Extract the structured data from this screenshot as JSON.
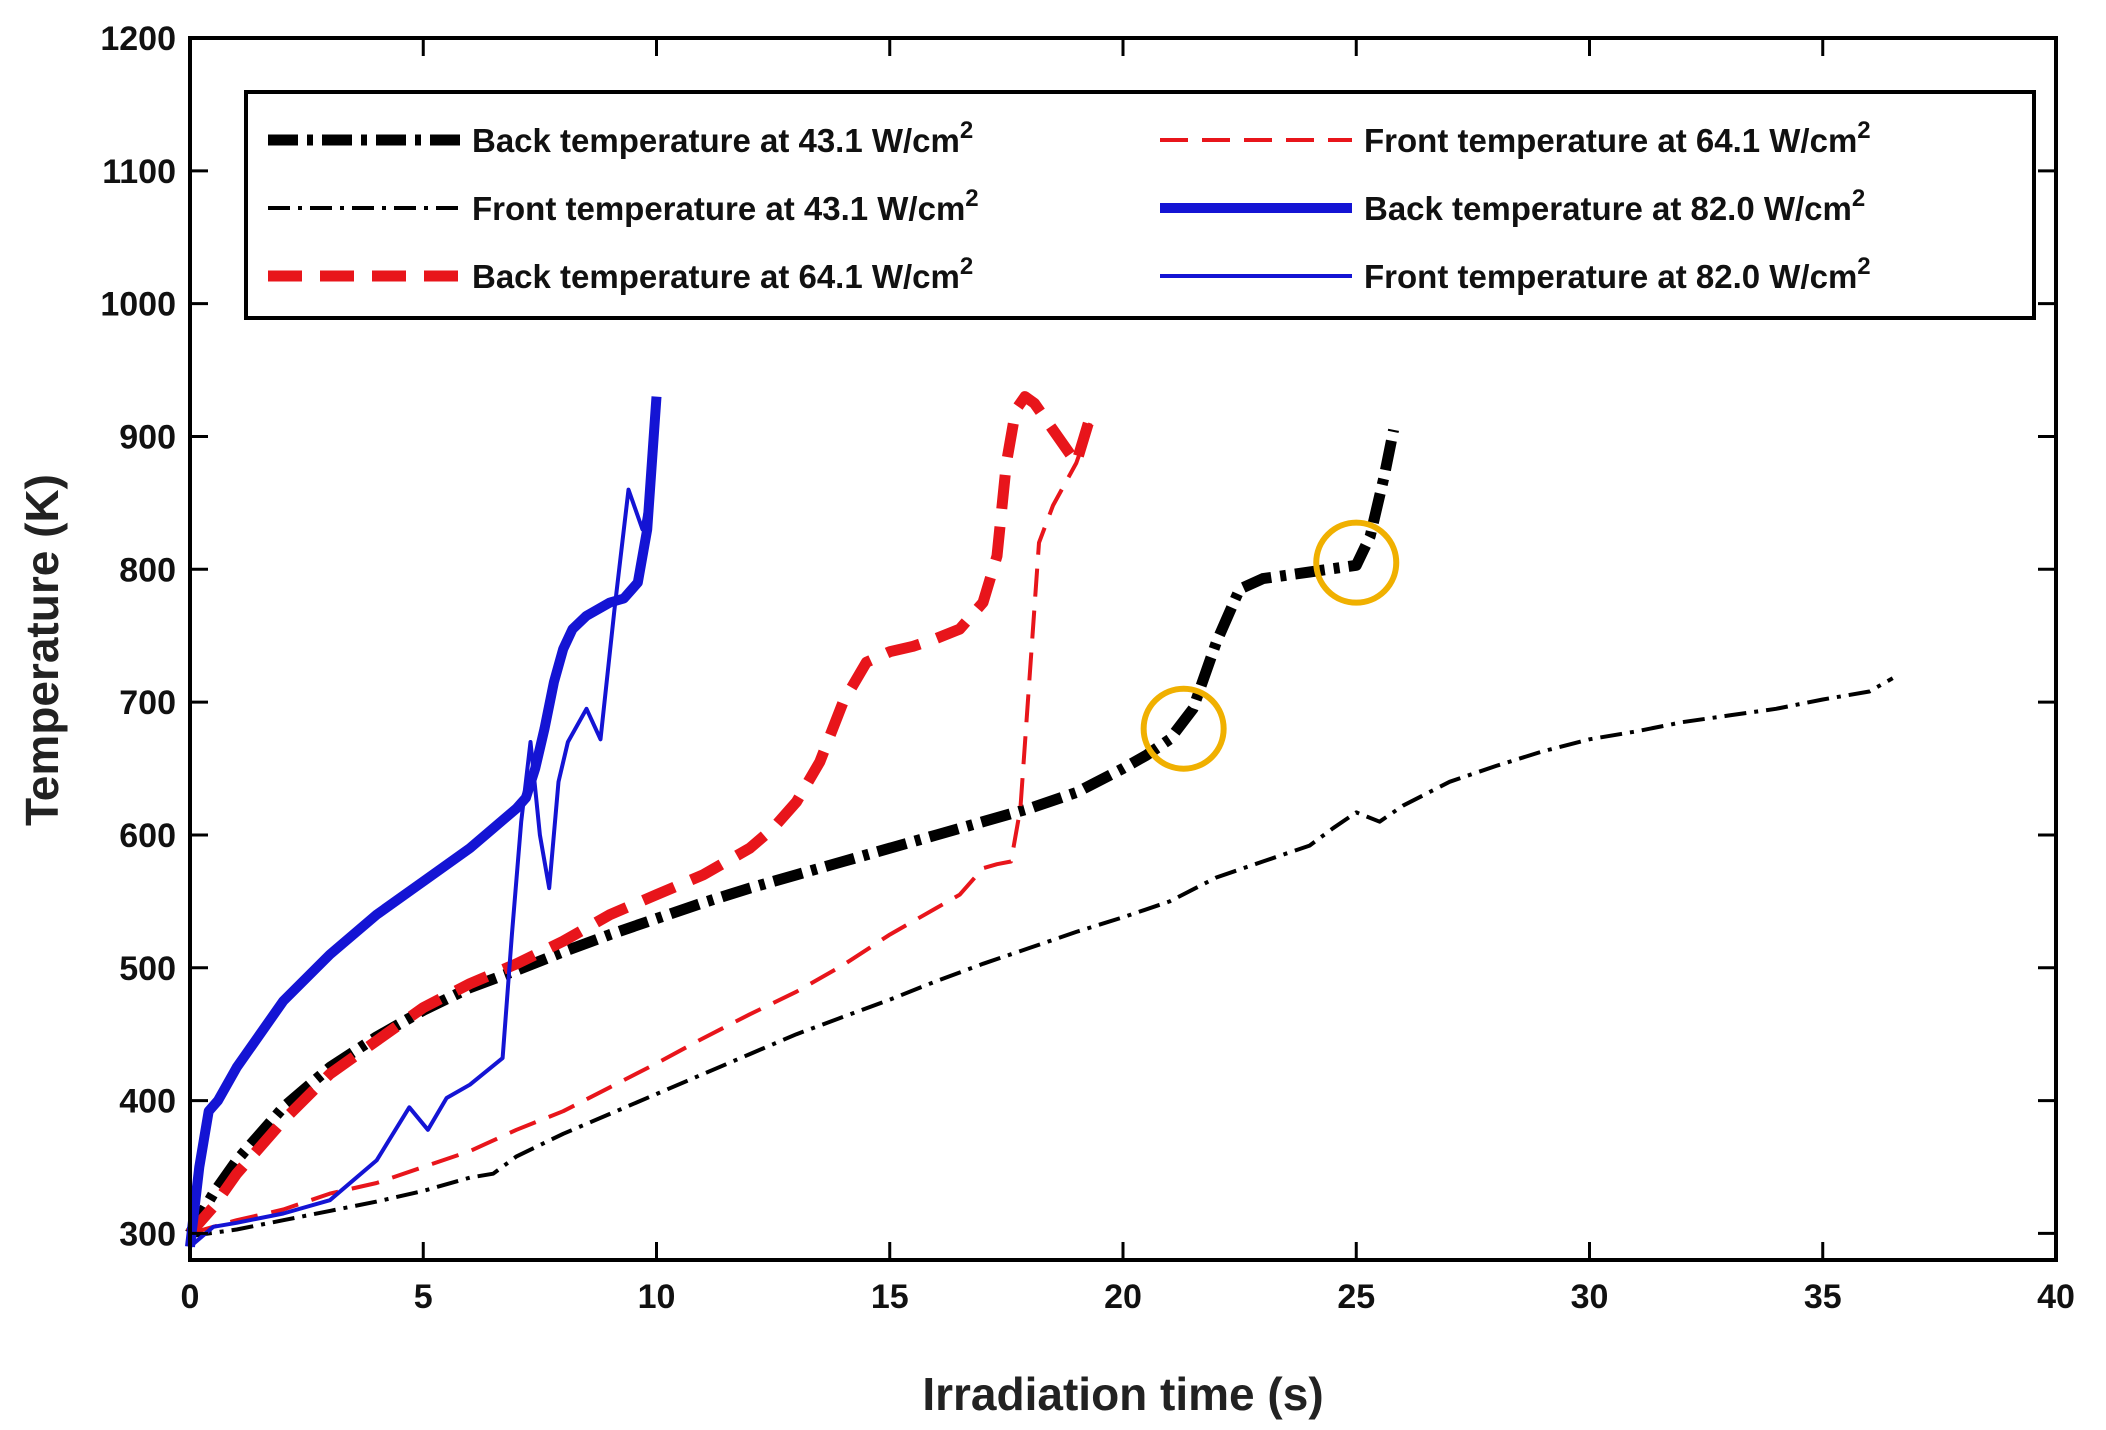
{
  "chart_data": {
    "type": "line",
    "title": "",
    "xlabel": "Irradiation time (s)",
    "ylabel": "Temperature (K)",
    "xlim": [
      0,
      40
    ],
    "ylim": [
      280,
      1200
    ],
    "xticks": [
      "0",
      "5",
      "10",
      "15",
      "20",
      "25",
      "30",
      "35",
      "40"
    ],
    "yticks": [
      "300",
      "400",
      "500",
      "600",
      "700",
      "800",
      "900",
      "1000",
      "1100",
      "1200"
    ],
    "grid": false,
    "legend_position": "top",
    "units_superscript": "2",
    "series": [
      {
        "name": "Back temperature at 43.1 W/cm",
        "color": "#000000",
        "style": "dashdot-thick",
        "x": [
          0,
          0.5,
          1,
          2,
          3,
          4,
          5,
          6,
          7,
          8,
          9,
          10,
          11,
          12,
          13,
          14,
          15,
          16,
          17,
          18,
          19,
          20,
          20.5,
          21,
          21.5,
          22,
          22.5,
          23,
          24,
          25,
          25.3,
          25.6,
          25.8
        ],
        "y": [
          300,
          330,
          355,
          395,
          425,
          448,
          468,
          485,
          498,
          512,
          525,
          537,
          549,
          560,
          570,
          580,
          590,
          600,
          610,
          620,
          632,
          650,
          660,
          672,
          695,
          745,
          785,
          793,
          798,
          803,
          825,
          870,
          905
        ]
      },
      {
        "name": "Front temperature at 43.1 W/cm",
        "color": "#000000",
        "style": "dashdot-thin",
        "x": [
          0,
          1,
          2,
          3,
          4,
          5,
          6,
          6.5,
          7,
          8,
          9,
          10,
          11,
          12,
          13,
          14,
          15,
          16,
          17,
          18,
          19,
          20,
          21,
          22,
          23,
          24,
          24.5,
          25,
          25.5,
          26,
          27,
          28,
          29,
          30,
          31,
          32,
          33,
          34,
          35,
          36,
          36.5
        ],
        "y": [
          298,
          303,
          310,
          317,
          324,
          332,
          342,
          345,
          358,
          375,
          390,
          405,
          420,
          435,
          450,
          463,
          476,
          490,
          503,
          515,
          527,
          538,
          550,
          568,
          580,
          592,
          605,
          617,
          610,
          622,
          640,
          652,
          663,
          672,
          678,
          685,
          690,
          695,
          702,
          708,
          718
        ]
      },
      {
        "name": "Back temperature at 64.1 W/cm",
        "color": "#e8151b",
        "style": "dash-thick",
        "x": [
          0,
          0.5,
          1,
          2,
          3,
          4,
          5,
          6,
          7,
          8,
          9,
          10,
          11,
          12,
          12.5,
          13,
          13.5,
          14,
          14.5,
          15,
          15.5,
          16,
          16.5,
          17,
          17.3,
          17.5,
          17.7,
          17.9,
          18.1,
          18.5,
          19,
          19.3
        ],
        "y": [
          300,
          320,
          345,
          385,
          420,
          445,
          470,
          488,
          503,
          520,
          540,
          555,
          570,
          590,
          605,
          625,
          655,
          700,
          730,
          738,
          742,
          748,
          755,
          775,
          810,
          880,
          920,
          930,
          925,
          905,
          880,
          915
        ]
      },
      {
        "name": "Front temperature at 64.1 W/cm",
        "color": "#e8151b",
        "style": "dash-thin",
        "x": [
          0,
          1,
          2,
          3,
          4,
          5,
          6,
          7,
          8,
          9,
          10,
          11,
          12,
          13,
          14,
          15,
          16,
          16.5,
          17,
          17.3,
          17.6,
          17.8,
          18,
          18.2,
          18.5,
          19,
          19.3
        ],
        "y": [
          300,
          310,
          318,
          330,
          338,
          350,
          362,
          378,
          392,
          410,
          428,
          447,
          465,
          482,
          502,
          525,
          545,
          555,
          575,
          578,
          580,
          620,
          720,
          820,
          848,
          880,
          910
        ]
      },
      {
        "name": "Back temperature at 82.0 W/cm",
        "color": "#1414d4",
        "style": "solid-thick",
        "x": [
          0,
          0.2,
          0.4,
          0.6,
          1,
          2,
          3,
          4,
          5,
          6,
          6.5,
          7,
          7.2,
          7.4,
          7.6,
          7.8,
          8,
          8.2,
          8.5,
          9,
          9.3,
          9.6,
          9.8,
          10
        ],
        "y": [
          290,
          350,
          392,
          400,
          425,
          475,
          510,
          540,
          565,
          590,
          605,
          620,
          628,
          650,
          680,
          715,
          740,
          755,
          765,
          775,
          778,
          790,
          830,
          930
        ]
      },
      {
        "name": "Front temperature at 82.0 W/cm",
        "color": "#1414d4",
        "style": "solid-thin",
        "x": [
          0,
          0.5,
          1,
          2,
          3,
          4,
          4.7,
          5.1,
          5.5,
          6,
          6.7,
          6.9,
          7.1,
          7.3,
          7.5,
          7.7,
          7.9,
          8.1,
          8.5,
          8.8,
          9.1,
          9.4,
          9.7,
          9.9,
          10
        ],
        "y": [
          290,
          305,
          308,
          315,
          325,
          355,
          395,
          378,
          402,
          412,
          432,
          525,
          610,
          670,
          600,
          560,
          640,
          670,
          695,
          672,
          770,
          860,
          830,
          870,
          900
        ]
      }
    ],
    "annotations": [
      {
        "type": "circle",
        "x": 21.3,
        "y": 680,
        "color": "#f0b000"
      },
      {
        "type": "circle",
        "x": 25.0,
        "y": 805,
        "color": "#f0b000"
      }
    ]
  }
}
